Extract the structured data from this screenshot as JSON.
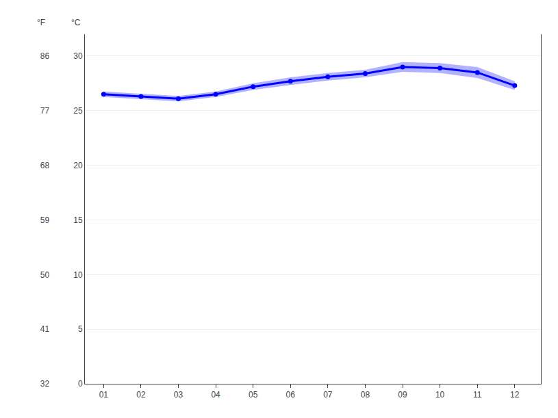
{
  "chart_data": {
    "type": "line",
    "x": [
      1,
      2,
      3,
      4,
      5,
      6,
      7,
      8,
      9,
      10,
      11,
      12
    ],
    "values": [
      26.5,
      26.3,
      26.1,
      26.5,
      27.2,
      27.7,
      28.1,
      28.4,
      29.0,
      28.9,
      28.5,
      27.3
    ],
    "errors": [
      0.25,
      0.25,
      0.25,
      0.25,
      0.3,
      0.35,
      0.35,
      0.35,
      0.45,
      0.45,
      0.5,
      0.4
    ],
    "color": "#0000ff",
    "marker": "circle",
    "xlim": [
      0.5,
      12.7
    ],
    "xticks": [
      {
        "value": 1,
        "label": "01"
      },
      {
        "value": 2,
        "label": "02"
      },
      {
        "value": 3,
        "label": "03"
      },
      {
        "value": 4,
        "label": "04"
      },
      {
        "value": 5,
        "label": "05"
      },
      {
        "value": 6,
        "label": "06"
      },
      {
        "value": 7,
        "label": "07"
      },
      {
        "value": 8,
        "label": "08"
      },
      {
        "value": 9,
        "label": "09"
      },
      {
        "value": 10,
        "label": "10"
      },
      {
        "value": 11,
        "label": "11"
      },
      {
        "value": 12,
        "label": "12"
      }
    ],
    "ylim": [
      0,
      32
    ],
    "yticks": [
      0,
      5,
      10,
      15,
      20,
      25,
      30
    ],
    "ylabel": "°C",
    "y2lim": [
      32,
      89.6
    ],
    "y2ticks": [
      32,
      41,
      50,
      59,
      68,
      77,
      86
    ],
    "y2label": "°F",
    "grid": true
  }
}
